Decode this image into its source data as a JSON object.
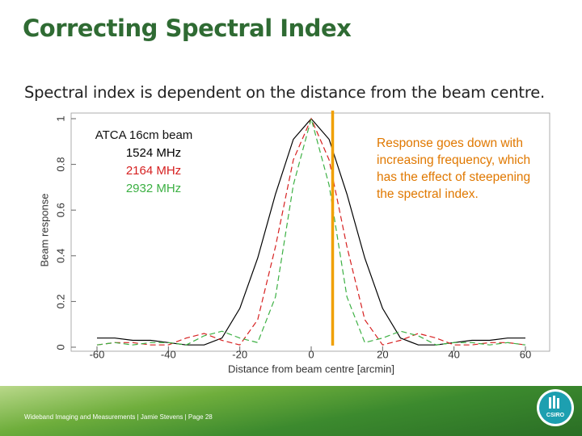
{
  "slide": {
    "title": "Correcting Spectral Index",
    "subtitle": "Spectral index is dependent on the distance from the beam centre.",
    "footer": "Wideband Imaging and Measurements  |  Jamie Stevens  |  Page 28",
    "logo": "CSIRO"
  },
  "chart_data": {
    "type": "line",
    "xlabel": "Distance from beam centre [arcmin]",
    "ylabel": "Beam response",
    "legend_title": "ATCA 16cm beam",
    "annotation": "Response goes down with increasing frequency, which has the effect of steepening the spectral index.",
    "marker_x": 6,
    "marker_color": "#f0a000",
    "x": [
      -60,
      -55,
      -50,
      -45,
      -40,
      -35,
      -30,
      -25,
      -20,
      -15,
      -10,
      -5,
      0,
      5,
      10,
      15,
      20,
      25,
      30,
      35,
      40,
      45,
      50,
      55,
      60
    ],
    "series": [
      {
        "name": "1524 MHz",
        "color": "#000000",
        "dashed": false,
        "values": [
          0.04,
          0.04,
          0.03,
          0.03,
          0.02,
          0.01,
          0.01,
          0.04,
          0.17,
          0.39,
          0.67,
          0.91,
          1,
          0.91,
          0.67,
          0.39,
          0.17,
          0.04,
          0.01,
          0.01,
          0.02,
          0.03,
          0.03,
          0.04,
          0.04
        ]
      },
      {
        "name": "2164 MHz",
        "color": "#d62020",
        "dashed": true,
        "values": [
          0.01,
          0.02,
          0.02,
          0.01,
          0.01,
          0.04,
          0.06,
          0.03,
          0.01,
          0.12,
          0.44,
          0.82,
          1,
          0.82,
          0.44,
          0.12,
          0.01,
          0.03,
          0.06,
          0.04,
          0.01,
          0.01,
          0.02,
          0.02,
          0.01
        ]
      },
      {
        "name": "2932 MHz",
        "color": "#3cb043",
        "dashed": true,
        "values": [
          0.01,
          0.02,
          0.01,
          0.02,
          0.02,
          0.01,
          0.05,
          0.07,
          0.04,
          0.02,
          0.22,
          0.71,
          1,
          0.71,
          0.22,
          0.02,
          0.04,
          0.07,
          0.05,
          0.01,
          0.02,
          0.02,
          0.01,
          0.02,
          0.01
        ]
      }
    ],
    "xlim": [
      -60,
      60
    ],
    "xticks": [
      -60,
      -40,
      -20,
      0,
      20,
      40,
      60
    ],
    "ylim": [
      0,
      1
    ],
    "yticks": [
      0,
      0.2,
      0.4,
      0.6,
      0.8,
      1
    ]
  }
}
